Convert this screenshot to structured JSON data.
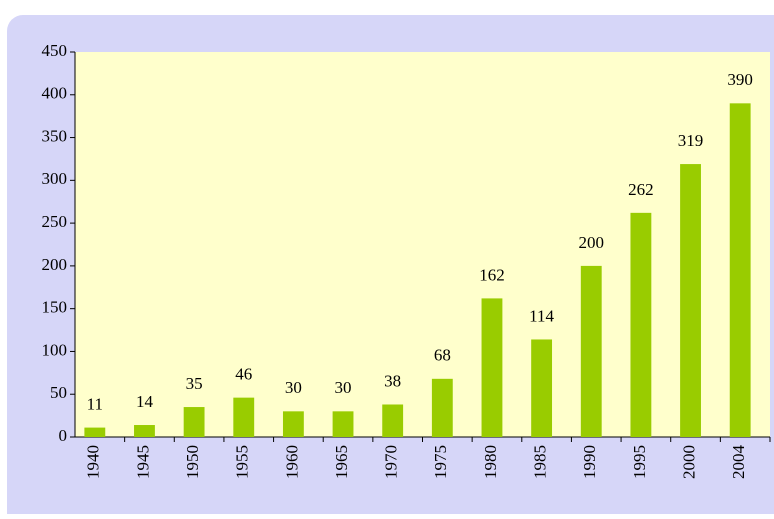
{
  "chart_data": {
    "type": "bar",
    "categories": [
      "1940",
      "1945",
      "1950",
      "1955",
      "1960",
      "1965",
      "1970",
      "1975",
      "1980",
      "1985",
      "1990",
      "1995",
      "2000",
      "2004"
    ],
    "values": [
      11,
      14,
      35,
      46,
      30,
      30,
      38,
      68,
      162,
      114,
      200,
      262,
      319,
      390
    ],
    "color": "#99cc00",
    "ylim": [
      0,
      450
    ],
    "yticks": [
      0,
      50,
      100,
      150,
      200,
      250,
      300,
      350,
      400,
      450
    ],
    "grid": false
  }
}
